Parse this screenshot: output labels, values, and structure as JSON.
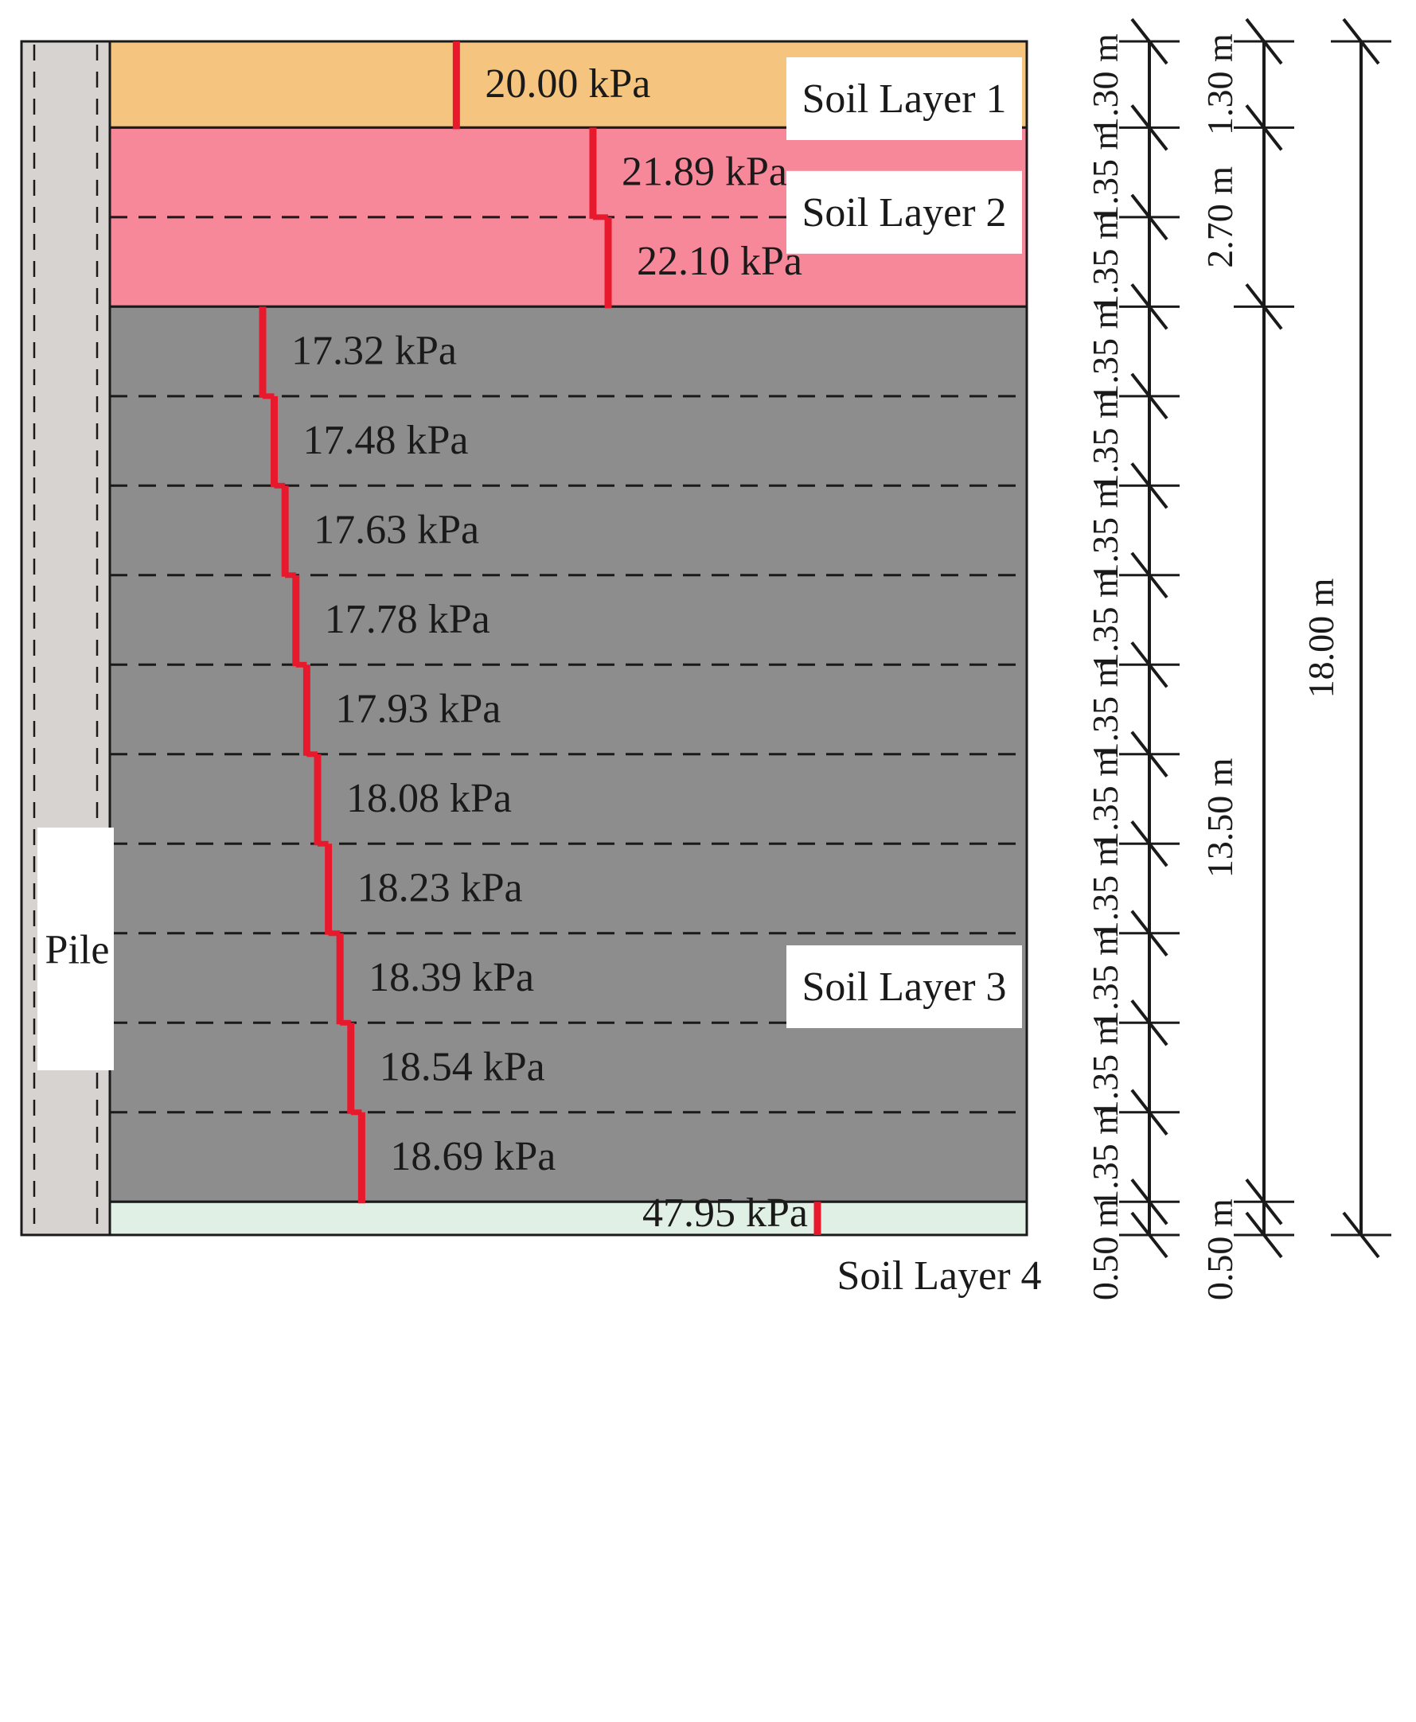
{
  "pile": {
    "label": "Pile"
  },
  "layers": [
    {
      "name": "Soil Layer 1",
      "color": "#f5c57f"
    },
    {
      "name": "Soil Layer 2",
      "color": "#f7889a"
    },
    {
      "name": "Soil Layer 3",
      "color": "#8d8d8d"
    },
    {
      "name": "Soil Layer 4",
      "color": "#e1f0e4"
    }
  ],
  "segments": [
    {
      "layer": 0,
      "value": 20.0,
      "label": "20.00 kPa",
      "thickness_label": "1.30 m"
    },
    {
      "layer": 1,
      "value": 21.89,
      "label": "21.89 kPa",
      "thickness_label": "1.35 m"
    },
    {
      "layer": 1,
      "value": 22.1,
      "label": "22.10 kPa",
      "thickness_label": "1.35 m"
    },
    {
      "layer": 2,
      "value": 17.32,
      "label": "17.32 kPa",
      "thickness_label": "1.35 m"
    },
    {
      "layer": 2,
      "value": 17.48,
      "label": "17.48 kPa",
      "thickness_label": "1.35 m"
    },
    {
      "layer": 2,
      "value": 17.63,
      "label": "17.63 kPa",
      "thickness_label": "1.35 m"
    },
    {
      "layer": 2,
      "value": 17.78,
      "label": "17.78 kPa",
      "thickness_label": "1.35 m"
    },
    {
      "layer": 2,
      "value": 17.93,
      "label": "17.93 kPa",
      "thickness_label": "1.35 m"
    },
    {
      "layer": 2,
      "value": 18.08,
      "label": "18.08 kPa",
      "thickness_label": "1.35 m"
    },
    {
      "layer": 2,
      "value": 18.23,
      "label": "18.23 kPa",
      "thickness_label": "1.35 m"
    },
    {
      "layer": 2,
      "value": 18.39,
      "label": "18.39 kPa",
      "thickness_label": "1.35 m"
    },
    {
      "layer": 2,
      "value": 18.54,
      "label": "18.54 kPa",
      "thickness_label": "1.35 m"
    },
    {
      "layer": 2,
      "value": 18.69,
      "label": "18.69 kPa",
      "thickness_label": "1.35 m"
    },
    {
      "layer": 3,
      "value": 47.95,
      "label": "47.95 kPa",
      "thickness_label": "0.50 m"
    }
  ],
  "dimensions": {
    "layer_thickness_labels": [
      "1.30 m",
      "2.70 m",
      "13.50 m",
      "0.50 m"
    ],
    "total_label": "18.00 m"
  },
  "colors": {
    "stress_line": "#e8192c",
    "pile_fill": "#d6d3d1",
    "outline": "#1a1a1a"
  }
}
